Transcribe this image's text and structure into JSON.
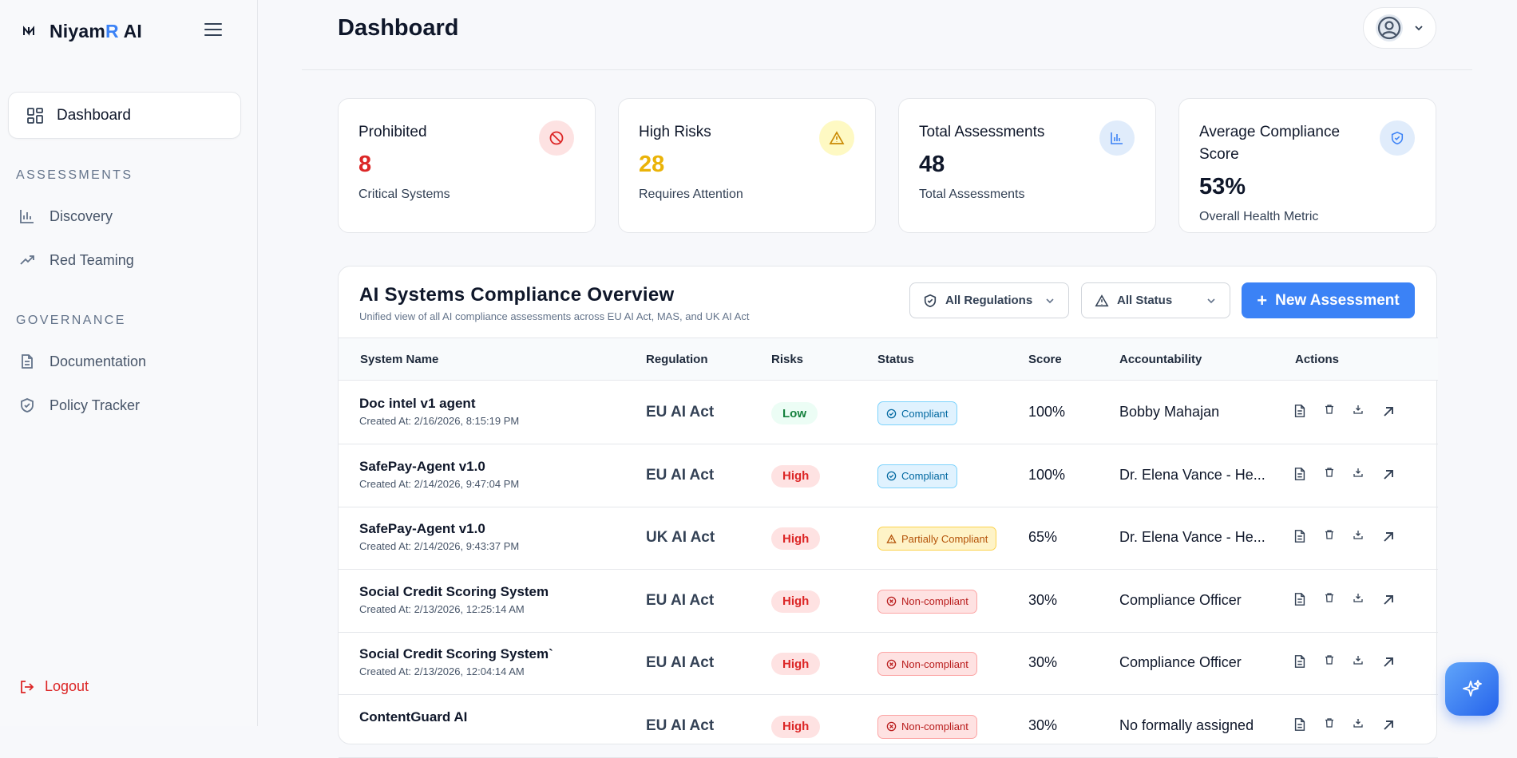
{
  "brand": {
    "name_main": "Niyam",
    "name_accent": "R",
    "name_suffix": " AI"
  },
  "sidebar": {
    "dashboard": "Dashboard",
    "sections": [
      {
        "title": "ASSESSMENTS",
        "items": [
          "Discovery",
          "Red Teaming"
        ]
      },
      {
        "title": "GOVERNANCE",
        "items": [
          "Documentation",
          "Policy Tracker"
        ]
      }
    ],
    "logout": "Logout"
  },
  "header": {
    "title": "Dashboard"
  },
  "stats": [
    {
      "label": "Prohibited",
      "value": "8",
      "sub": "Critical Systems",
      "color": "#dc2626",
      "icon": "ban-icon"
    },
    {
      "label": "High Risks",
      "value": "28",
      "sub": "Requires Attention",
      "color": "#eab308",
      "icon": "warning-icon"
    },
    {
      "label": "Total Assessments",
      "value": "48",
      "sub": "Total Assessments",
      "color": "#0f172a",
      "icon": "bar-chart-icon"
    },
    {
      "label": "Average Compliance Score",
      "value": "53%",
      "sub": "Overall Health Metric",
      "color": "#0f172a",
      "icon": "shield-check-icon"
    }
  ],
  "overview": {
    "title": "AI Systems Compliance Overview",
    "subtitle": "Unified view of all AI compliance assessments across EU AI Act, MAS, and UK AI Act",
    "filters": {
      "regulation": "All Regulations",
      "status": "All Status"
    },
    "new_button": "New Assessment",
    "columns": [
      "System Name",
      "Regulation",
      "Risks",
      "Status",
      "Score",
      "Accountability",
      "Actions"
    ],
    "rows": [
      {
        "name": "Doc intel v1 agent",
        "created": "Created At: 2/16/2026, 8:15:19 PM",
        "regulation": "EU AI Act",
        "risk": "Low",
        "status": "Compliant",
        "score": "100%",
        "accountability": "Bobby Mahajan"
      },
      {
        "name": "SafePay-Agent v1.0",
        "created": "Created At: 2/14/2026, 9:47:04 PM",
        "regulation": "EU AI Act",
        "risk": "High",
        "status": "Compliant",
        "score": "100%",
        "accountability": "Dr. Elena Vance - He..."
      },
      {
        "name": "SafePay-Agent v1.0",
        "created": "Created At: 2/14/2026, 9:43:37 PM",
        "regulation": "UK AI Act",
        "risk": "High",
        "status": "Partially Compliant",
        "score": "65%",
        "accountability": "Dr. Elena Vance - He..."
      },
      {
        "name": "Social Credit Scoring System",
        "created": "Created At: 2/13/2026, 12:25:14 AM",
        "regulation": "EU AI Act",
        "risk": "High",
        "status": "Non-compliant",
        "score": "30%",
        "accountability": "Compliance Officer"
      },
      {
        "name": "Social Credit Scoring System`",
        "created": "Created At: 2/13/2026, 12:04:14 AM",
        "regulation": "EU AI Act",
        "risk": "High",
        "status": "Non-compliant",
        "score": "30%",
        "accountability": "Compliance Officer"
      },
      {
        "name": "ContentGuard AI",
        "created": "",
        "regulation": "EU AI Act",
        "risk": "High",
        "status": "Non-compliant",
        "score": "30%",
        "accountability": "No formally assigned"
      }
    ]
  }
}
